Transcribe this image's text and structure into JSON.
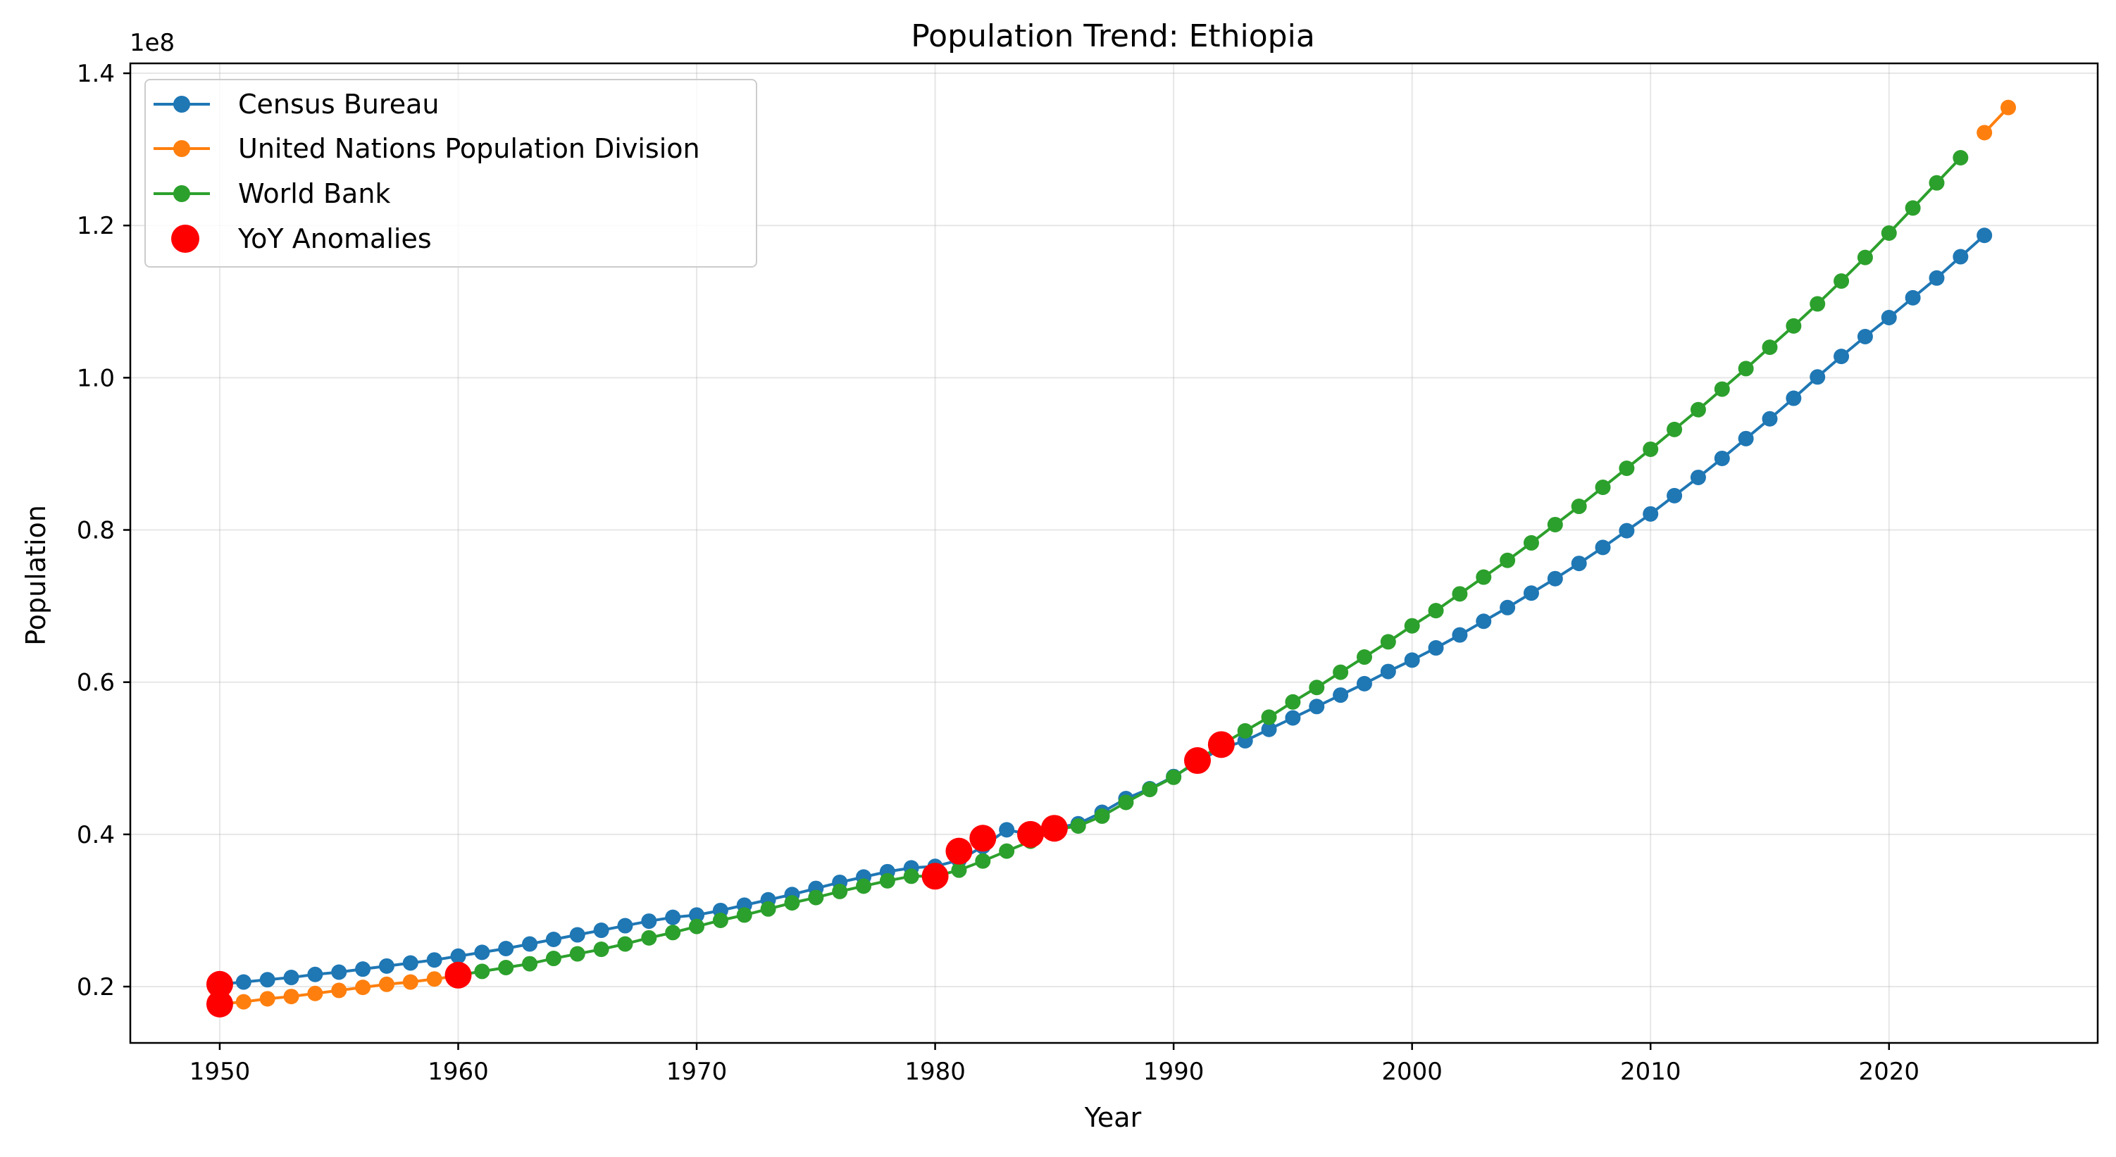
{
  "chart_data": {
    "type": "line",
    "title": "Population Trend: Ethiopia",
    "xlabel": "Year",
    "ylabel": "Population",
    "offset_text": "1e8",
    "xlim": [
      1946.25,
      2028.75
    ],
    "ylim": [
      12600000,
      141300000
    ],
    "x_ticks": [
      1950,
      1960,
      1970,
      1980,
      1990,
      2000,
      2010,
      2020
    ],
    "x_tick_labels": [
      "1950",
      "1960",
      "1970",
      "1980",
      "1990",
      "2000",
      "2010",
      "2020"
    ],
    "y_ticks": [
      20000000,
      40000000,
      60000000,
      80000000,
      100000000,
      120000000,
      140000000
    ],
    "y_tick_labels": [
      "0.2",
      "0.4",
      "0.6",
      "0.8",
      "1.0",
      "1.2",
      "1.4"
    ],
    "grid": true,
    "legend_position": "top-left",
    "series": [
      {
        "name": "Census Bureau",
        "color": "#1f77b4",
        "x": [
          1950,
          1951,
          1952,
          1953,
          1954,
          1955,
          1956,
          1957,
          1958,
          1959,
          1960,
          1961,
          1962,
          1963,
          1964,
          1965,
          1966,
          1967,
          1968,
          1969,
          1970,
          1971,
          1972,
          1973,
          1974,
          1975,
          1976,
          1977,
          1978,
          1979,
          1980,
          1981,
          1982,
          1983,
          1984,
          1985,
          1986,
          1987,
          1988,
          1989,
          1990,
          1991,
          1992,
          1993,
          1994,
          1995,
          1996,
          1997,
          1998,
          1999,
          2000,
          2001,
          2002,
          2003,
          2004,
          2005,
          2006,
          2007,
          2008,
          2009,
          2010,
          2011,
          2012,
          2013,
          2014,
          2015,
          2016,
          2017,
          2018,
          2019,
          2020,
          2021,
          2022,
          2023,
          2024
        ],
        "y": [
          20300000,
          20600000,
          20900000,
          21200000,
          21600000,
          21900000,
          22300000,
          22700000,
          23100000,
          23500000,
          24000000,
          24500000,
          25000000,
          25600000,
          26200000,
          26800000,
          27400000,
          28000000,
          28600000,
          29100000,
          29400000,
          30000000,
          30700000,
          31400000,
          32100000,
          32900000,
          33700000,
          34400000,
          35100000,
          35600000,
          35800000,
          36600000,
          38400000,
          40600000,
          40000000,
          40800000,
          41400000,
          42900000,
          44700000,
          46000000,
          47600000,
          49500000,
          51300000,
          52300000,
          53800000,
          55300000,
          56800000,
          58300000,
          59800000,
          61400000,
          62900000,
          64500000,
          66200000,
          68000000,
          69800000,
          71700000,
          73600000,
          75600000,
          77700000,
          79900000,
          82100000,
          84500000,
          86900000,
          89400000,
          92000000,
          94600000,
          97300000,
          100100000,
          102800000,
          105400000,
          107900000,
          110500000,
          113100000,
          115900000,
          118700000
        ]
      },
      {
        "name": "United Nations Population Division",
        "color": "#ff7f0e",
        "x": [
          1950,
          1951,
          1952,
          1953,
          1954,
          1955,
          1956,
          1957,
          1958,
          1959,
          1960,
          2024,
          2025
        ],
        "y": [
          17700000,
          18000000,
          18400000,
          18700000,
          19100000,
          19500000,
          19900000,
          20300000,
          20600000,
          21000000,
          21400000,
          132200000,
          135500000
        ]
      },
      {
        "name": "World Bank",
        "color": "#2ca02c",
        "x": [
          1960,
          1961,
          1962,
          1963,
          1964,
          1965,
          1966,
          1967,
          1968,
          1969,
          1970,
          1971,
          1972,
          1973,
          1974,
          1975,
          1976,
          1977,
          1978,
          1979,
          1980,
          1981,
          1982,
          1983,
          1984,
          1985,
          1986,
          1987,
          1988,
          1989,
          1990,
          1991,
          1992,
          1993,
          1994,
          1995,
          1996,
          1997,
          1998,
          1999,
          2000,
          2001,
          2002,
          2003,
          2004,
          2005,
          2006,
          2007,
          2008,
          2009,
          2010,
          2011,
          2012,
          2013,
          2014,
          2015,
          2016,
          2017,
          2018,
          2019,
          2020,
          2021,
          2022,
          2023
        ],
        "y": [
          21500000,
          22000000,
          22500000,
          23000000,
          23700000,
          24300000,
          24900000,
          25600000,
          26400000,
          27100000,
          27900000,
          28700000,
          29400000,
          30200000,
          31000000,
          31700000,
          32500000,
          33200000,
          33900000,
          34500000,
          34500000,
          35300000,
          36500000,
          37800000,
          39100000,
          40600000,
          41100000,
          42400000,
          44200000,
          45900000,
          47500000,
          49700000,
          51800000,
          53600000,
          55400000,
          57400000,
          59300000,
          61300000,
          63300000,
          65300000,
          67400000,
          69400000,
          71600000,
          73800000,
          76000000,
          78300000,
          80700000,
          83100000,
          85600000,
          88100000,
          90600000,
          93200000,
          95800000,
          98500000,
          101200000,
          104000000,
          106800000,
          109700000,
          112700000,
          115800000,
          119000000,
          122300000,
          125600000,
          128900000
        ]
      },
      {
        "name": "YoY Anomalies",
        "color": "#ff0000",
        "kind": "scatter",
        "x": [
          1950,
          1950,
          1960,
          1980,
          1981,
          1982,
          1984,
          1985,
          1991,
          1992
        ],
        "y": [
          20300000,
          17700000,
          21500000,
          34500000,
          37800000,
          39500000,
          40000000,
          40800000,
          49700000,
          51800000
        ]
      }
    ]
  }
}
